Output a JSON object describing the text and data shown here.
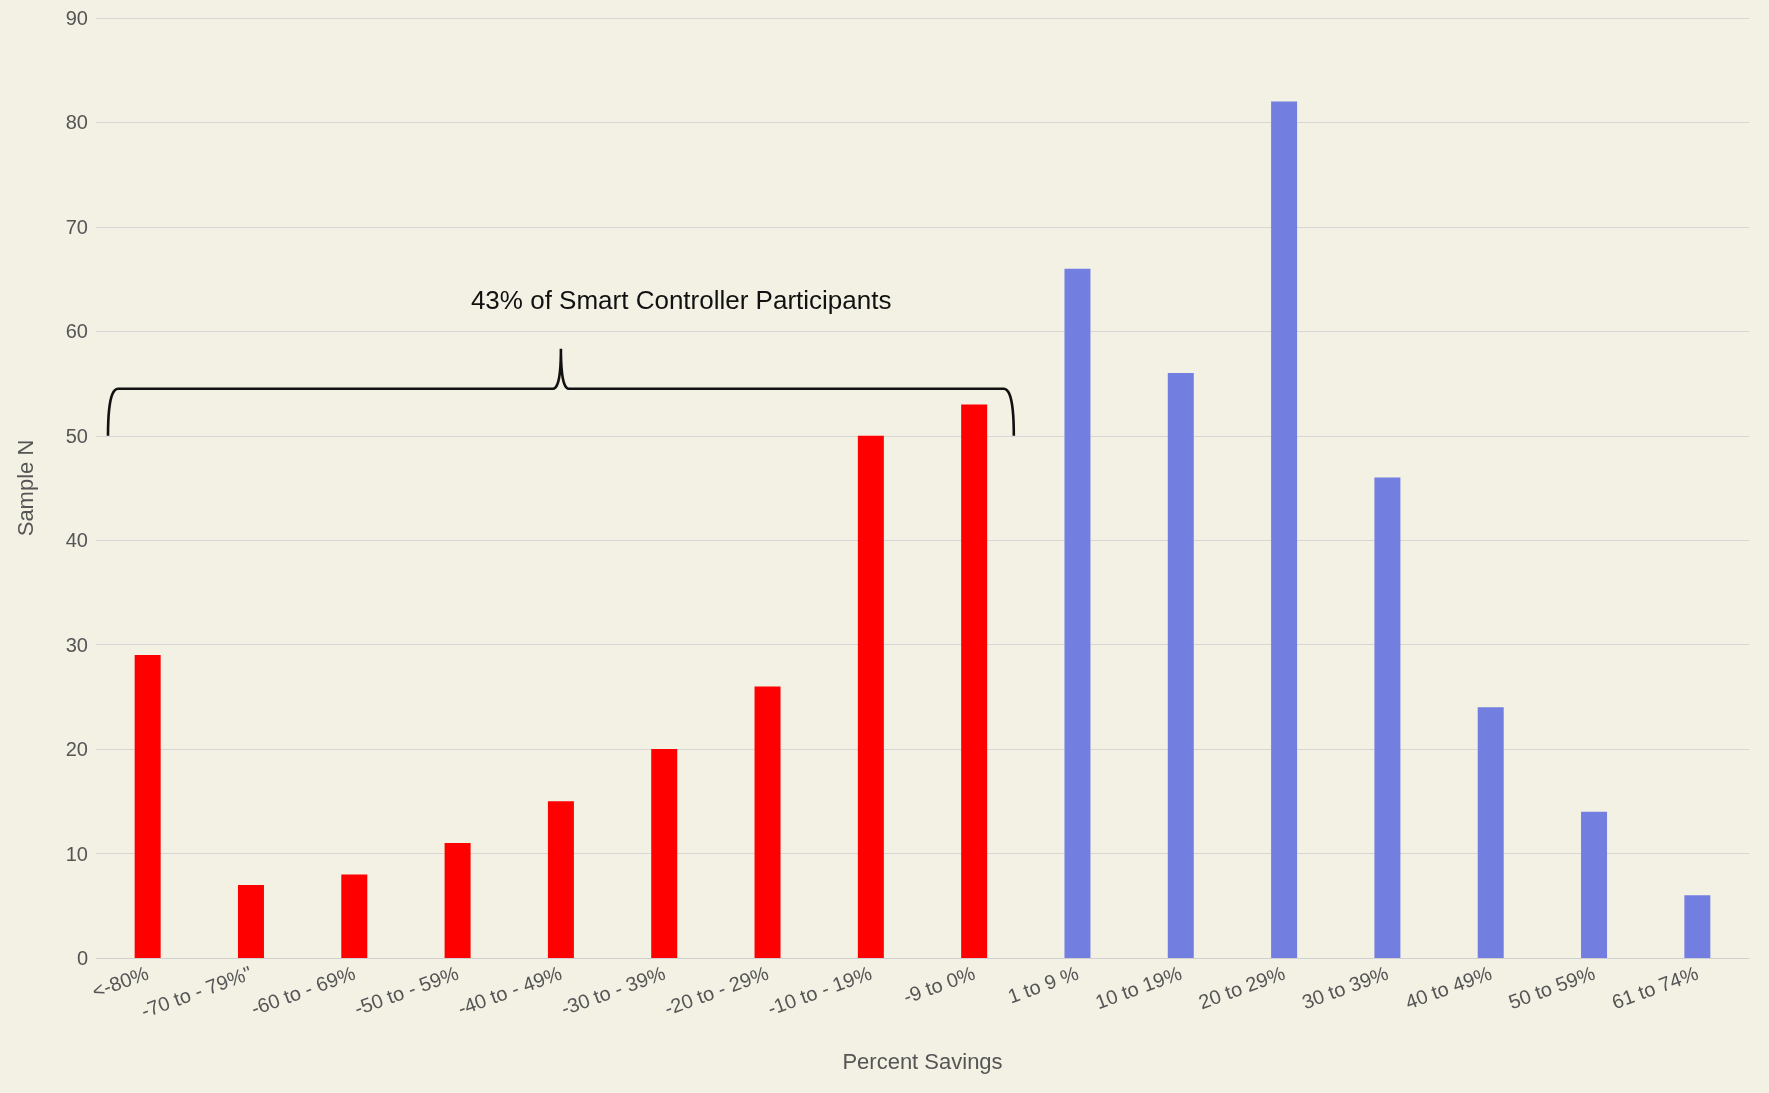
{
  "chart_data": {
    "type": "bar",
    "xlabel": "Percent Savings",
    "ylabel": "Sample N",
    "categories": [
      "<-80%",
      "-70 to - 79%\"",
      "-60 to - 69%",
      "-50 to - 59%",
      "-40 to - 49%",
      "-30 to - 39%",
      "-20 to - 29%",
      "-10 to - 19%",
      "-9 to 0%",
      "1 to 9 %",
      "10 to 19%",
      "20 to 29%",
      "30 to 39%",
      "40 to 49%",
      "50 to 59%",
      "61 to 74%"
    ],
    "values": [
      29,
      7,
      8,
      11,
      15,
      20,
      26,
      50,
      53,
      66,
      56,
      82,
      46,
      24,
      14,
      6
    ],
    "colors": [
      "#ff0000",
      "#ff0000",
      "#ff0000",
      "#ff0000",
      "#ff0000",
      "#ff0000",
      "#ff0000",
      "#ff0000",
      "#ff0000",
      "#737fe0",
      "#737fe0",
      "#737fe0",
      "#737fe0",
      "#737fe0",
      "#737fe0",
      "#737fe0"
    ],
    "ylim": [
      0,
      90
    ],
    "yticks": [
      0,
      10,
      20,
      30,
      40,
      50,
      60,
      70,
      80,
      90
    ],
    "grid": true,
    "annotations": [
      "43% of Smart Controller Participants"
    ]
  }
}
